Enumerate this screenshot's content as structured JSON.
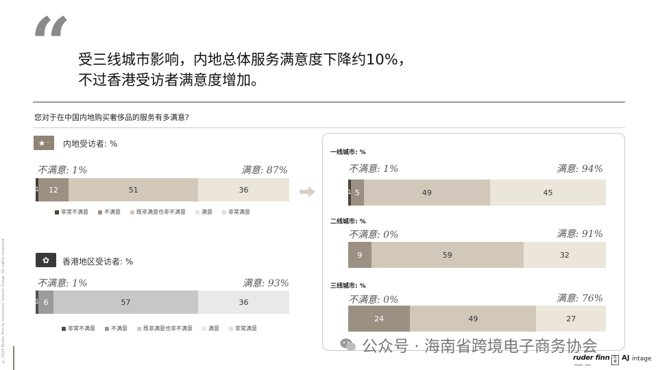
{
  "quote_mark": "“",
  "headline": {
    "line1": "受三线城市影响，内地总体服务满意度下降约10%，",
    "line2": "不过香港受访者满意度增加。"
  },
  "question": "您对于在中国内地购买奢侈品的服务有多满意?",
  "side_text": "© 2023 Ruder Finn & Consumer Search Group. All rights reserved.",
  "colors": {
    "very_unsatisfied": "#4a4038",
    "unsatisfied": "#9c9082",
    "neutral": "#d2c8ba",
    "satisfied": "#ece5da",
    "very_satisfied": "#f6f3ee",
    "hk_very_unsatisfied": "#4f4f4f",
    "hk_unsatisfied": "#9b9b9b",
    "hk_neutral": "#c7c7c7",
    "hk_satisfied": "#e9e9e9",
    "hk_very_satisfied": "#f4f4f4"
  },
  "watermark": "公众号 · 海南省跨境电子商务协会",
  "logos": {
    "ruderfinn": "ruder finn",
    "ruderfinn_sub": "doubt · soul",
    "box": "凯 睿",
    "intage_mark": "AJ",
    "intage": "intage"
  },
  "chart_data": [
    {
      "type": "bar",
      "orientation": "horizontal-stacked-100",
      "title": "内地受访者: %",
      "unsatisfied_label": "不满意: 1%",
      "satisfied_label": "满意: 87%",
      "categories": [
        "非常不满意",
        "不满意",
        "既非满意也非不满意",
        "满意",
        "非常满意"
      ],
      "values": [
        1,
        12,
        51,
        36,
        0
      ],
      "value_labels": [
        "1",
        "12",
        "51",
        "36",
        ""
      ],
      "legend": [
        "非常不满意",
        "不满意",
        "既非满意也非不满意",
        "满意",
        "非常满意"
      ]
    },
    {
      "type": "bar",
      "orientation": "horizontal-stacked-100",
      "title": "香港地区受访者: %",
      "unsatisfied_label": "不满意: 1%",
      "satisfied_label": "满意: 93%",
      "categories": [
        "非常不满意",
        "不满意",
        "既非满意也非不满意",
        "满意",
        "非常满意"
      ],
      "values": [
        1,
        6,
        57,
        36,
        0
      ],
      "value_labels": [
        "1",
        "6",
        "57",
        "36",
        ""
      ],
      "legend": [
        "非常不满意",
        "不满意",
        "既非满意也非不满意",
        "满意",
        "非常满意"
      ]
    },
    {
      "type": "bar",
      "orientation": "horizontal-stacked-100",
      "title": "一线城市: %",
      "unsatisfied_label": "不满意: 1%",
      "satisfied_label": "满意: 94%",
      "values": [
        1,
        5,
        49,
        45
      ],
      "value_labels": [
        "1",
        "5",
        "49",
        "45"
      ]
    },
    {
      "type": "bar",
      "orientation": "horizontal-stacked-100",
      "title": "二线城市: %",
      "unsatisfied_label": "不满意: 0%",
      "satisfied_label": "满意: 91%",
      "values": [
        9,
        59,
        32
      ],
      "value_labels": [
        "9",
        "59",
        "32"
      ]
    },
    {
      "type": "bar",
      "orientation": "horizontal-stacked-100",
      "title": "三线城市: %",
      "unsatisfied_label": "不满意:  0%",
      "satisfied_label": "满意: 76%",
      "values": [
        24,
        49,
        27
      ],
      "value_labels": [
        "24",
        "49",
        "27"
      ]
    }
  ]
}
